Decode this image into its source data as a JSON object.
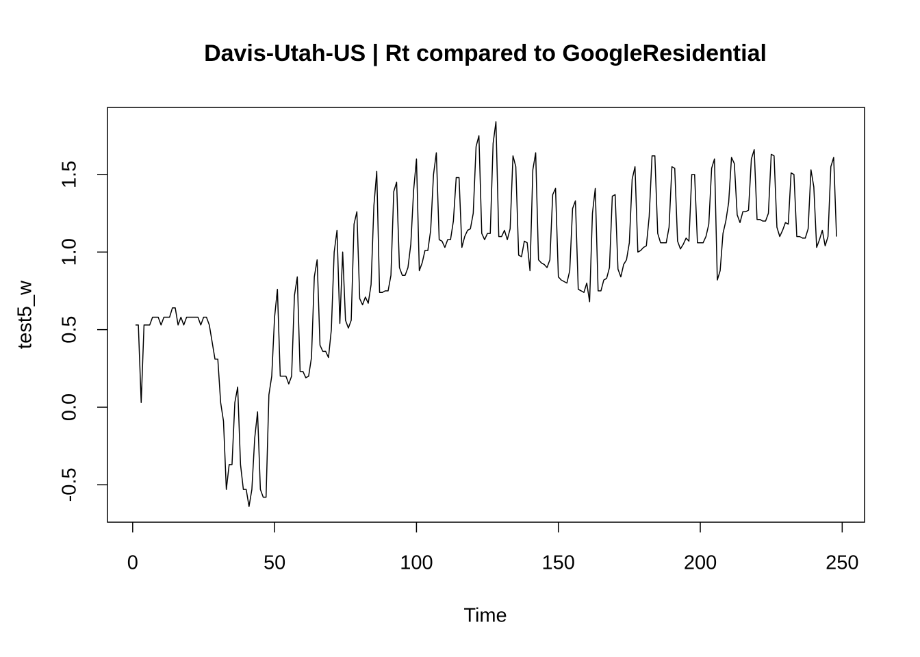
{
  "chart_data": {
    "type": "line",
    "title": "Davis-Utah-US | Rt compared to GoogleResidential",
    "x_label": "Time",
    "y_label": "test5_w",
    "color": "#000000",
    "x": [
      1,
      2,
      3,
      4,
      5,
      6,
      7,
      8,
      9,
      10,
      11,
      12,
      13,
      14,
      15,
      16,
      17,
      18,
      19,
      20,
      21,
      22,
      23,
      24,
      25,
      26,
      27,
      28,
      29,
      30,
      31,
      32,
      33,
      34,
      35,
      36,
      37,
      38,
      39,
      40,
      41,
      42,
      43,
      44,
      45,
      46,
      47,
      48,
      49,
      50,
      51,
      52,
      53,
      54,
      55,
      56,
      57,
      58,
      59,
      60,
      61,
      62,
      63,
      64,
      65,
      66,
      67,
      68,
      69,
      70,
      71,
      72,
      73,
      74,
      75,
      76,
      77,
      78,
      79,
      80,
      81,
      82,
      83,
      84,
      85,
      86,
      87,
      88,
      89,
      90,
      91,
      92,
      93,
      94,
      95,
      96,
      97,
      98,
      99,
      100,
      101,
      102,
      103,
      104,
      105,
      106,
      107,
      108,
      109,
      110,
      111,
      112,
      113,
      114,
      115,
      116,
      117,
      118,
      119,
      120,
      121,
      122,
      123,
      124,
      125,
      126,
      127,
      128,
      129,
      130,
      131,
      132,
      133,
      134,
      135,
      136,
      137,
      138,
      139,
      140,
      141,
      142,
      143,
      144,
      145,
      146,
      147,
      148,
      149,
      150,
      151,
      152,
      153,
      154,
      155,
      156,
      157,
      158,
      159,
      160,
      161,
      162,
      163,
      164,
      165,
      166,
      167,
      168,
      169,
      170,
      171,
      172,
      173,
      174,
      175,
      176,
      177,
      178,
      179,
      180,
      181,
      182,
      183,
      184,
      185,
      186,
      187,
      188,
      189,
      190,
      191,
      192,
      193,
      194,
      195,
      196,
      197,
      198,
      199,
      200,
      201,
      202,
      203,
      204,
      205,
      206,
      207,
      208,
      209,
      210,
      211,
      212,
      213,
      214,
      215,
      216,
      217,
      218,
      219,
      220,
      221,
      222,
      223,
      224,
      225,
      226,
      227,
      228,
      229,
      230,
      231,
      232,
      233,
      234,
      235,
      236,
      237,
      238,
      239,
      240,
      241,
      242,
      243,
      244,
      245,
      246,
      247,
      248
    ],
    "values": [
      0.53,
      0.53,
      0.03,
      0.53,
      0.53,
      0.53,
      0.58,
      0.58,
      0.58,
      0.53,
      0.58,
      0.58,
      0.58,
      0.64,
      0.64,
      0.53,
      0.58,
      0.53,
      0.58,
      0.58,
      0.58,
      0.58,
      0.58,
      0.53,
      0.58,
      0.58,
      0.53,
      0.42,
      0.31,
      0.31,
      0.03,
      -0.09,
      -0.53,
      -0.37,
      -0.37,
      0.03,
      0.13,
      -0.37,
      -0.53,
      -0.53,
      -0.64,
      -0.53,
      -0.2,
      -0.03,
      -0.53,
      -0.58,
      -0.58,
      0.08,
      0.2,
      0.58,
      0.76,
      0.2,
      0.2,
      0.2,
      0.15,
      0.2,
      0.72,
      0.84,
      0.23,
      0.23,
      0.19,
      0.2,
      0.32,
      0.84,
      0.95,
      0.4,
      0.36,
      0.36,
      0.32,
      0.5,
      1.0,
      1.14,
      0.54,
      1.0,
      0.56,
      0.51,
      0.56,
      1.18,
      1.26,
      0.7,
      0.66,
      0.71,
      0.67,
      0.79,
      1.3,
      1.52,
      0.74,
      0.74,
      0.75,
      0.75,
      0.85,
      1.39,
      1.45,
      0.9,
      0.85,
      0.85,
      0.9,
      1.05,
      1.4,
      1.6,
      0.88,
      0.93,
      1.01,
      1.01,
      1.14,
      1.5,
      1.64,
      1.08,
      1.07,
      1.03,
      1.08,
      1.08,
      1.2,
      1.48,
      1.48,
      1.03,
      1.1,
      1.14,
      1.15,
      1.25,
      1.68,
      1.75,
      1.12,
      1.08,
      1.12,
      1.12,
      1.7,
      1.84,
      1.1,
      1.1,
      1.14,
      1.08,
      1.15,
      1.62,
      1.55,
      0.98,
      0.97,
      1.07,
      1.06,
      0.88,
      1.53,
      1.64,
      0.95,
      0.93,
      0.92,
      0.9,
      0.95,
      1.37,
      1.41,
      0.84,
      0.82,
      0.81,
      0.8,
      0.88,
      1.28,
      1.33,
      0.76,
      0.75,
      0.74,
      0.8,
      0.68,
      1.25,
      1.41,
      0.75,
      0.75,
      0.82,
      0.83,
      0.9,
      1.36,
      1.37,
      0.89,
      0.84,
      0.92,
      0.95,
      1.06,
      1.47,
      1.55,
      1.0,
      1.01,
      1.03,
      1.04,
      1.23,
      1.62,
      1.62,
      1.12,
      1.06,
      1.06,
      1.06,
      1.16,
      1.55,
      1.54,
      1.07,
      1.02,
      1.05,
      1.09,
      1.07,
      1.5,
      1.5,
      1.06,
      1.06,
      1.06,
      1.1,
      1.18,
      1.54,
      1.6,
      0.82,
      0.88,
      1.12,
      1.2,
      1.32,
      1.61,
      1.57,
      1.24,
      1.19,
      1.26,
      1.26,
      1.27,
      1.6,
      1.66,
      1.21,
      1.21,
      1.2,
      1.2,
      1.25,
      1.63,
      1.62,
      1.16,
      1.1,
      1.14,
      1.19,
      1.18,
      1.51,
      1.5,
      1.1,
      1.1,
      1.09,
      1.09,
      1.15,
      1.53,
      1.42,
      1.03,
      1.08,
      1.14,
      1.04,
      1.1,
      1.55,
      1.61,
      1.1
    ],
    "xlim": [
      -8.88,
      257.88
    ],
    "ylim": [
      -0.741,
      1.932
    ],
    "xticks": [
      0,
      50,
      100,
      150,
      200,
      250
    ],
    "yticks": [
      -0.5,
      {
        "value": 0,
        "label": "0.0"
      },
      0.5,
      {
        "value": 1,
        "label": "1.0"
      },
      1.5
    ]
  }
}
